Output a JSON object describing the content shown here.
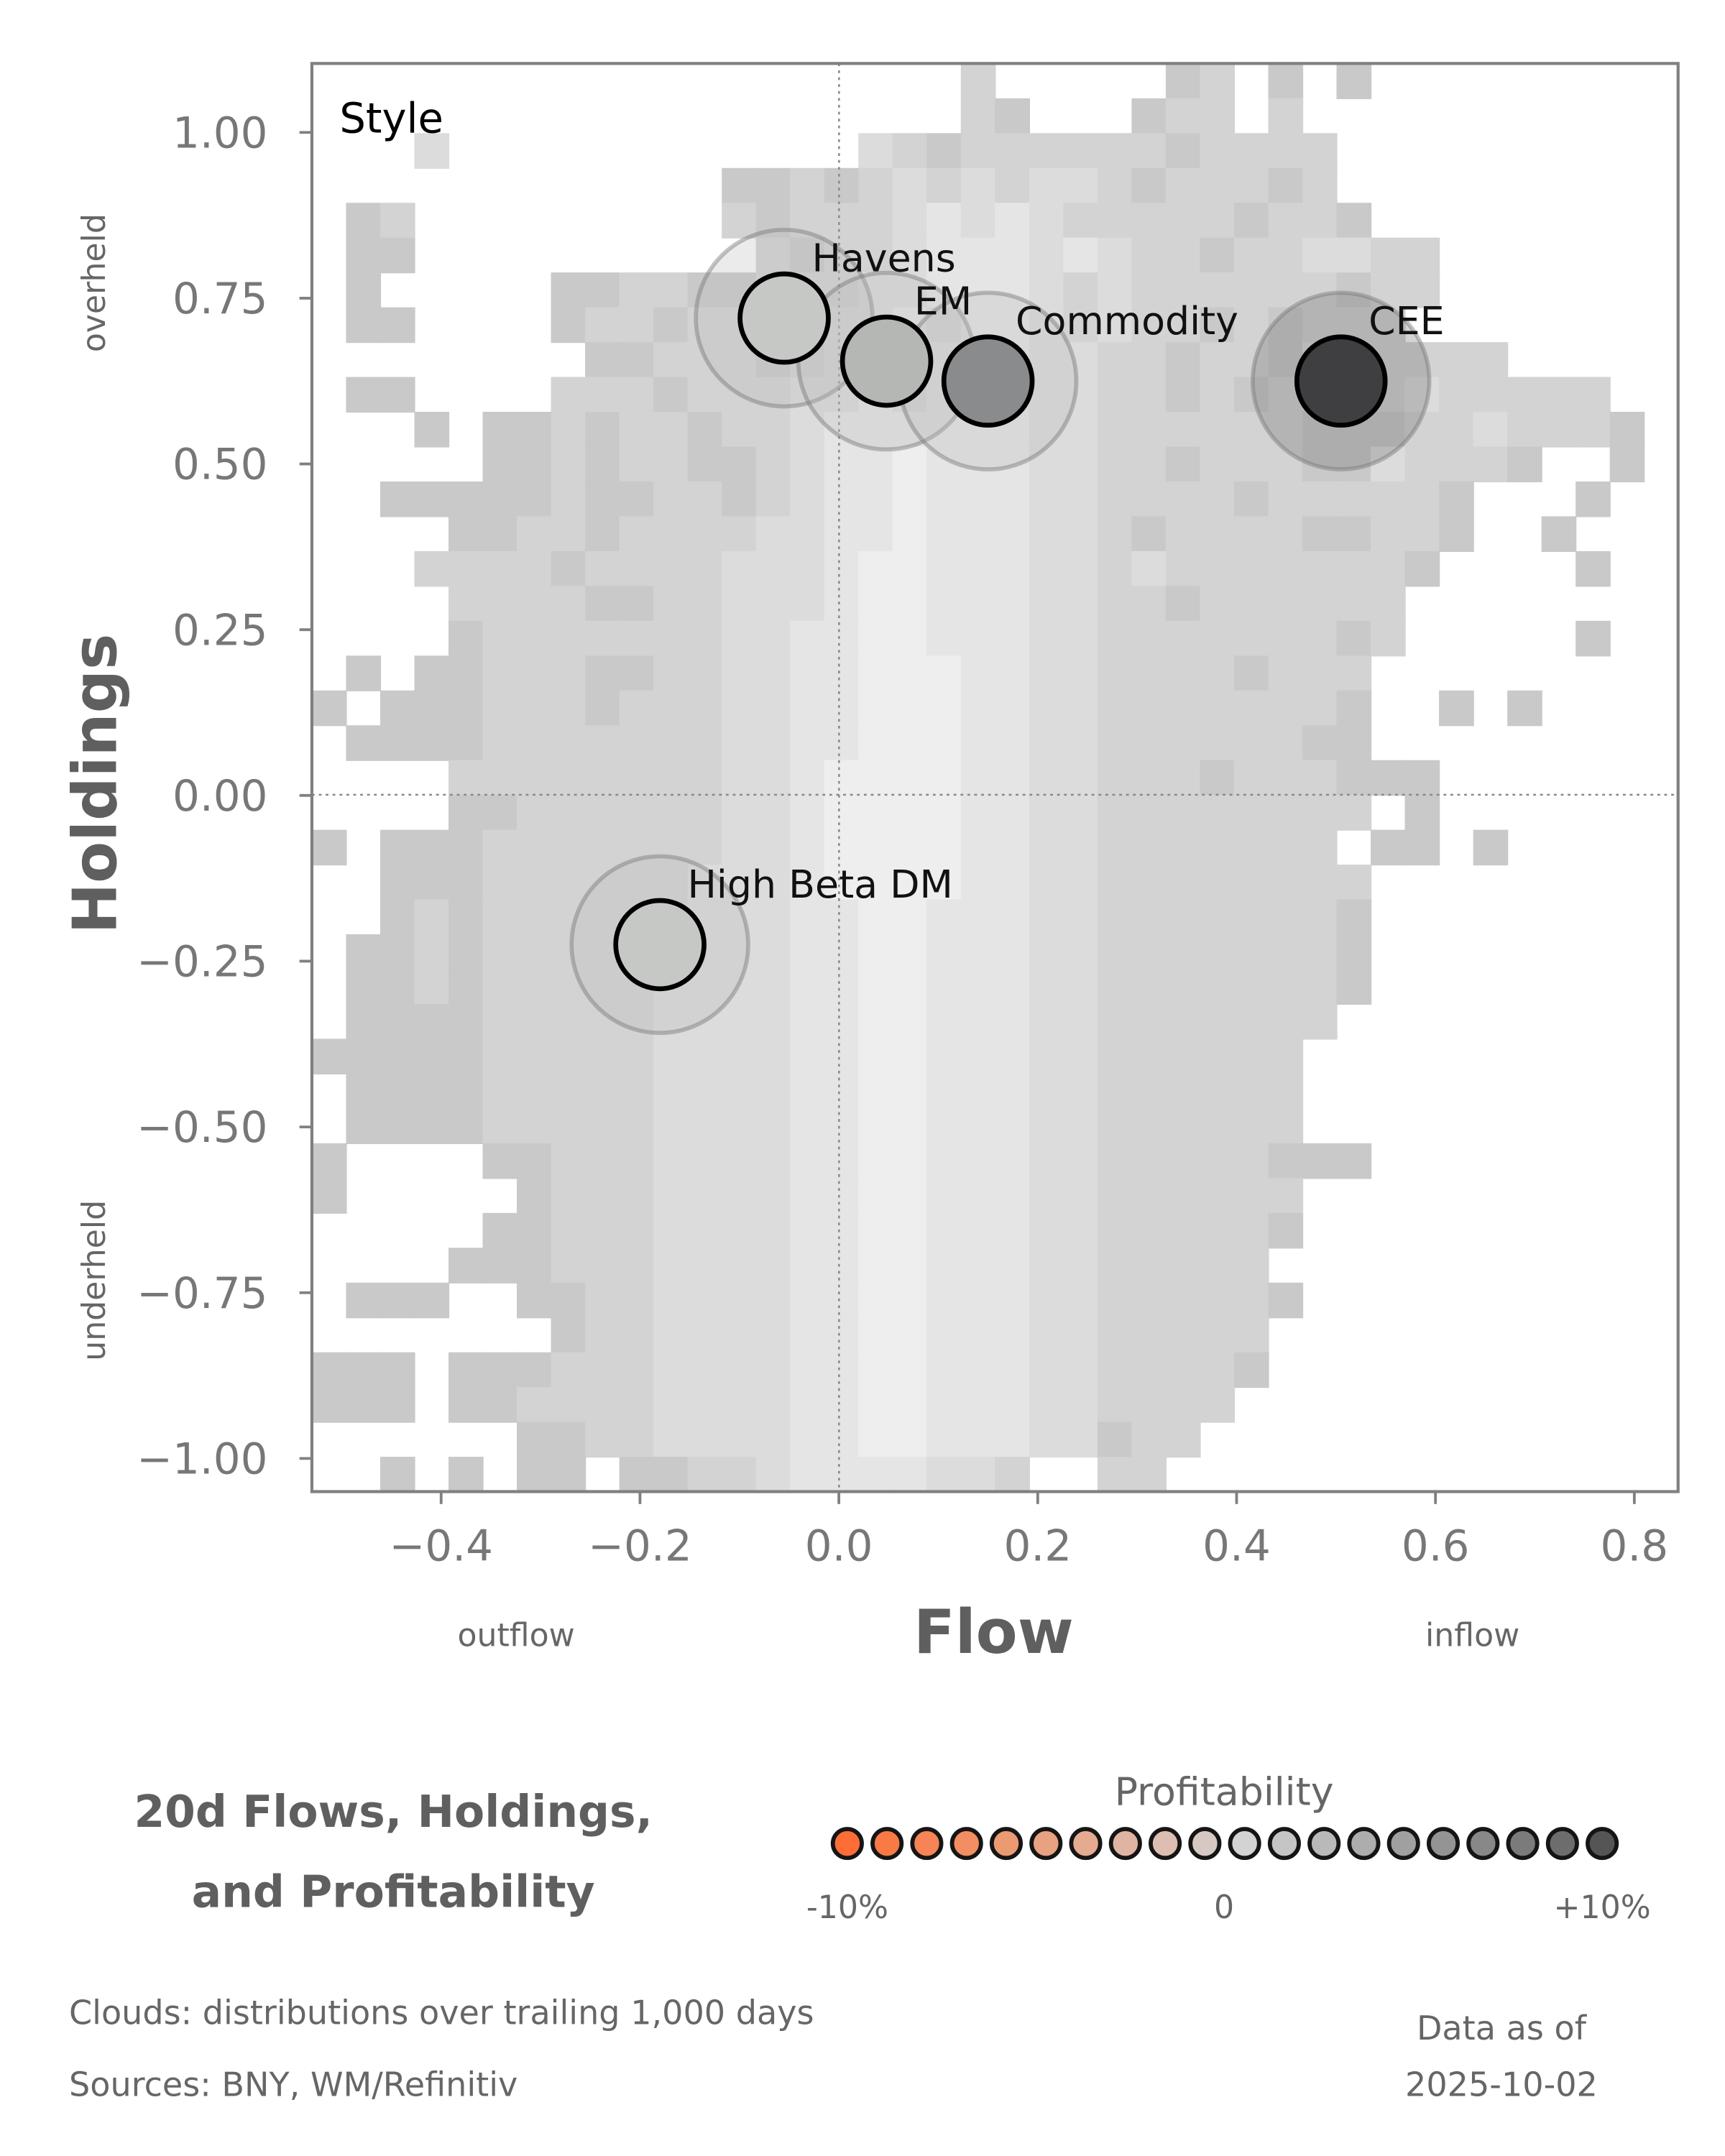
{
  "chart_data": {
    "type": "scatter",
    "panel_label": "Style",
    "xlabel": "Flow",
    "ylabel": "Holdings",
    "x_side_labels": {
      "left": "outflow",
      "right": "inflow"
    },
    "y_side_labels": {
      "top": "overheld",
      "bottom": "underheld"
    },
    "xlim": [
      -0.53,
      0.844
    ],
    "ylim": [
      -1.05,
      1.104
    ],
    "xticks": [
      -0.4,
      -0.2,
      0.0,
      0.2,
      0.4,
      0.6,
      0.8
    ],
    "xtick_labels": [
      "−0.4",
      "−0.2",
      "0.0",
      "0.2",
      "0.4",
      "0.6",
      "0.8"
    ],
    "yticks": [
      1.0,
      0.75,
      0.5,
      0.25,
      0.0,
      -0.25,
      -0.5,
      -0.75,
      -1.0
    ],
    "ytick_labels": [
      "1.00",
      "0.75",
      "0.50",
      "0.25",
      "0.00",
      "−0.25",
      "−0.50",
      "−0.75",
      "−1.00"
    ],
    "reference_lines": {
      "x": 0,
      "y": 0
    },
    "points": [
      {
        "name": "Havens",
        "flow": -0.055,
        "holdings": 0.72,
        "color": "#c6c8c6"
      },
      {
        "name": "EM",
        "flow": 0.048,
        "holdings": 0.655,
        "color": "#b5b7b5"
      },
      {
        "name": "Commodity",
        "flow": 0.15,
        "holdings": 0.625,
        "color": "#8a8b8d"
      },
      {
        "name": "CEE",
        "flow": 0.505,
        "holdings": 0.625,
        "color": "#3f3f41"
      },
      {
        "name": "High Beta DM",
        "flow": -0.18,
        "holdings": -0.225,
        "color": "#c6c8c6"
      }
    ],
    "cloud": {
      "description_levels": [
        "#ffffff",
        "#c9c9c9",
        "#d3d3d3",
        "#dcdcdc",
        "#e5e5e5",
        "#eeeeee"
      ],
      "rows": [
        "0000000000000000000200000120101000000000",
        "0000000000000000000210001220200000000000",
        "0003000000000000321222222122220000000000",
        "0000000000001121232323321222120000000000",
        "0120000000002122234343222221221000000000",
        "0110000000000212234443432212233220000000",
        "0100000112211222334443232222221220000000",
        "0110000122122123343443232212122200000000",
        "0000000011222123434443322122132222200000",
        "0110000222122233434443322121222232222200",
        "0001011212212234444443322222211122322210",
        "0000011212211234454443322122211322210010",
        "0011111211221234454443322221222221000100",
        "0000112212222334454443321222211221001000",
        "0002222122223334554443323222222210000100",
        "0000222211223334554443322122222200000000",
        "0000122222223344554443322222221200000100",
        "0101122211223344555443322221222000000000",
        "1011122212223344555443322222221001010000",
        "0111122222223344555443322222211000000000",
        "0000222222223345555443322212221110000000",
        "0000112222223345555443322222222010000000",
        "1011122222223345555443322222220110100000",
        "0011122222233345555443322222222000000000",
        "0012122222233344554443322222221000000000",
        "0112122222333344554443322222221000000000",
        "0112122222333344554443322222221000000000",
        "0111122222333344554443322222220000000000",
        "1111122222333344554443322222200000000000",
        "0111122222333344554443322222200000000000",
        "0111122222333344554443322222200000000000",
        "1000011222333344554443322222111000000000",
        "1000001222333344554443322222200000000000",
        "0000011222333344554443322222100000000000",
        "0000111222333344554443322222000000000000",
        "0111001122333344554443322222100000000000",
        "0000000122333344554443322222000000000000",
        "1110111222333344554443322221000000000000",
        "1110112222333344554443322220000000000000",
        "0000001122333344554443312200000000000000",
        "0010101101122344443320022000000000000000"
      ]
    }
  },
  "title": {
    "line1": "20d Flows, Holdings,",
    "line2": "and Profitability"
  },
  "legend": {
    "title": "Profitability",
    "labels": {
      "low": "-10%",
      "mid": "0",
      "high": "+10%"
    },
    "colors": [
      "#ff6d36",
      "#fa7a45",
      "#f68456",
      "#f28e62",
      "#ec9a72",
      "#e8a282",
      "#e5ab91",
      "#e0b4a3",
      "#dcbfb2",
      "#d6c9c3",
      "#d3d3d3",
      "#c5c5c5",
      "#b9b9b9",
      "#adadad",
      "#a0a0a0",
      "#949494",
      "#888888",
      "#7b7b7b",
      "#6d6d6d",
      "#555555"
    ]
  },
  "footer": {
    "clouds_note": "Clouds:  distributions over trailing 1,000 days",
    "sources": "Sources:  BNY, WM/Refinitiv",
    "asof_label": "Data as of",
    "asof_date": "2025-10-02"
  }
}
